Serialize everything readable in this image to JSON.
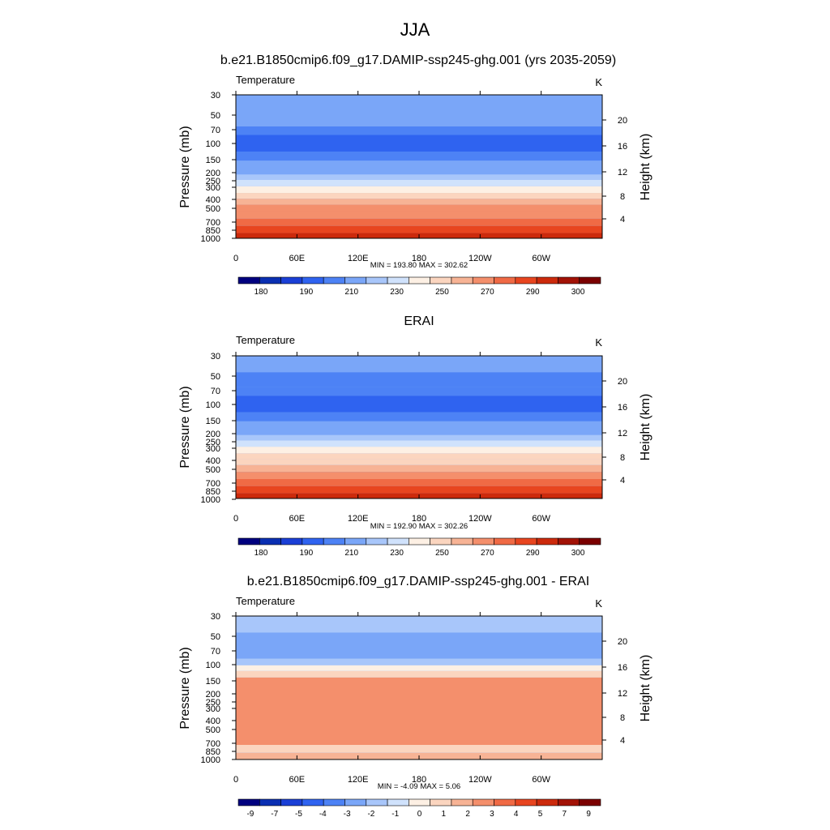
{
  "page": {
    "season": "JJA"
  },
  "chart_data": [
    {
      "type": "heatmap",
      "title": "b.e21.B1850cmip6.f09_g17.DAMIP-ssp245-ghg.001 (yrs 2035-2059)",
      "variable": "Temperature",
      "units": "K",
      "ylabel": "Pressure (mb)",
      "y2label": "Height (km)",
      "xlabel": "",
      "x_ticks": [
        "0",
        "60E",
        "120E",
        "180",
        "120W",
        "60W"
      ],
      "y_ticks": [
        "30",
        "50",
        "70",
        "100",
        "150",
        "200",
        "250",
        "300",
        "400",
        "500",
        "700",
        "850",
        "1000"
      ],
      "y2_ticks": [
        "20",
        "16",
        "12",
        "8",
        "4"
      ],
      "y_scale": "log",
      "stats": "MIN = 193.80  MAX = 302.62",
      "colorbar_labels": [
        "180",
        "190",
        "210",
        "230",
        "250",
        "270",
        "290",
        "300"
      ],
      "colorbar_colors": [
        "#00007f",
        "#0a2fb2",
        "#1a3fd6",
        "#2f63f0",
        "#4d82f5",
        "#7aa6f8",
        "#a8c6fa",
        "#d0e2fc",
        "#fdf0e4",
        "#fbd5bf",
        "#f7b395",
        "#f48f6c",
        "#f06a45",
        "#e8451f",
        "#cc2a0c",
        "#a21206",
        "#7b0000"
      ],
      "data_description_bands": [
        {
          "p_top": 30,
          "p_bottom": 45,
          "value": 215
        },
        {
          "p_top": 45,
          "p_bottom": 65,
          "value": 212
        },
        {
          "p_top": 65,
          "p_bottom": 80,
          "value": 208
        },
        {
          "p_top": 80,
          "p_bottom": 120,
          "value": 201
        },
        {
          "p_top": 120,
          "p_bottom": 150,
          "value": 207
        },
        {
          "p_top": 150,
          "p_bottom": 180,
          "value": 213
        },
        {
          "p_top": 180,
          "p_bottom": 210,
          "value": 218
        },
        {
          "p_top": 210,
          "p_bottom": 240,
          "value": 223
        },
        {
          "p_top": 240,
          "p_bottom": 280,
          "value": 230
        },
        {
          "p_top": 280,
          "p_bottom": 330,
          "value": 238
        },
        {
          "p_top": 330,
          "p_bottom": 380,
          "value": 246
        },
        {
          "p_top": 380,
          "p_bottom": 440,
          "value": 253
        },
        {
          "p_top": 440,
          "p_bottom": 520,
          "value": 260
        },
        {
          "p_top": 520,
          "p_bottom": 620,
          "value": 267
        },
        {
          "p_top": 620,
          "p_bottom": 740,
          "value": 274
        },
        {
          "p_top": 740,
          "p_bottom": 880,
          "value": 281
        },
        {
          "p_top": 880,
          "p_bottom": 1000,
          "value": 288
        }
      ]
    },
    {
      "type": "heatmap",
      "title": "ERAI",
      "variable": "Temperature",
      "units": "K",
      "ylabel": "Pressure (mb)",
      "y2label": "Height (km)",
      "xlabel": "",
      "x_ticks": [
        "0",
        "60E",
        "120E",
        "180",
        "120W",
        "60W"
      ],
      "y_ticks": [
        "30",
        "50",
        "70",
        "100",
        "150",
        "200",
        "250",
        "300",
        "400",
        "500",
        "700",
        "850",
        "1000"
      ],
      "y2_ticks": [
        "20",
        "16",
        "12",
        "8",
        "4"
      ],
      "y_scale": "log",
      "stats": "MIN = 192.90  MAX = 302.26",
      "colorbar_labels": [
        "180",
        "190",
        "210",
        "230",
        "250",
        "270",
        "290",
        "300"
      ],
      "colorbar_colors": [
        "#00007f",
        "#0a2fb2",
        "#1a3fd6",
        "#2f63f0",
        "#4d82f5",
        "#7aa6f8",
        "#a8c6fa",
        "#d0e2fc",
        "#fdf0e4",
        "#fbd5bf",
        "#f7b395",
        "#f48f6c",
        "#f06a45",
        "#e8451f",
        "#cc2a0c",
        "#a21206",
        "#7b0000"
      ],
      "data_description_bands": [
        {
          "p_top": 30,
          "p_bottom": 45,
          "value": 214
        },
        {
          "p_top": 45,
          "p_bottom": 65,
          "value": 211
        },
        {
          "p_top": 65,
          "p_bottom": 80,
          "value": 207
        },
        {
          "p_top": 80,
          "p_bottom": 120,
          "value": 200
        },
        {
          "p_top": 120,
          "p_bottom": 150,
          "value": 206
        },
        {
          "p_top": 150,
          "p_bottom": 180,
          "value": 212
        },
        {
          "p_top": 180,
          "p_bottom": 210,
          "value": 217
        },
        {
          "p_top": 210,
          "p_bottom": 240,
          "value": 222
        },
        {
          "p_top": 240,
          "p_bottom": 280,
          "value": 228
        },
        {
          "p_top": 280,
          "p_bottom": 330,
          "value": 236
        },
        {
          "p_top": 330,
          "p_bottom": 380,
          "value": 244
        },
        {
          "p_top": 380,
          "p_bottom": 440,
          "value": 251
        },
        {
          "p_top": 440,
          "p_bottom": 520,
          "value": 258
        },
        {
          "p_top": 520,
          "p_bottom": 620,
          "value": 265
        },
        {
          "p_top": 620,
          "p_bottom": 740,
          "value": 272
        },
        {
          "p_top": 740,
          "p_bottom": 880,
          "value": 279
        },
        {
          "p_top": 880,
          "p_bottom": 1000,
          "value": 286
        }
      ]
    },
    {
      "type": "heatmap",
      "title": "b.e21.B1850cmip6.f09_g17.DAMIP-ssp245-ghg.001 - ERAI",
      "variable": "Temperature",
      "units": "K",
      "ylabel": "Pressure (mb)",
      "y2label": "Height (km)",
      "xlabel": "",
      "x_ticks": [
        "0",
        "60E",
        "120E",
        "180",
        "120W",
        "60W"
      ],
      "y_ticks": [
        "30",
        "50",
        "70",
        "100",
        "150",
        "200",
        "250",
        "300",
        "400",
        "500",
        "700",
        "850",
        "1000"
      ],
      "y2_ticks": [
        "20",
        "16",
        "12",
        "8",
        "4"
      ],
      "y_scale": "log",
      "stats": "MIN =  -4.09  MAX =   5.06",
      "colorbar_labels": [
        "-9",
        "-7",
        "-5",
        "-4",
        "-3",
        "-2",
        "-1",
        "0",
        "1",
        "2",
        "3",
        "4",
        "5",
        "7",
        "9"
      ],
      "colorbar_colors": [
        "#00007f",
        "#0a2fb2",
        "#1a3fd6",
        "#2f63f0",
        "#4d82f5",
        "#7aa6f8",
        "#a8c6fa",
        "#d0e2fc",
        "#fdf0e4",
        "#fbd5bf",
        "#f7b395",
        "#f48f6c",
        "#f06a45",
        "#e8451f",
        "#cc2a0c",
        "#a21206",
        "#7b0000"
      ],
      "data_description_bands": [
        {
          "p_top": 30,
          "p_bottom": 45,
          "value": -2.5
        },
        {
          "p_top": 45,
          "p_bottom": 65,
          "value": -3.5
        },
        {
          "p_top": 65,
          "p_bottom": 85,
          "value": -4.0
        },
        {
          "p_top": 85,
          "p_bottom": 100,
          "value": -2.0
        },
        {
          "p_top": 100,
          "p_bottom": 115,
          "value": 0.5
        },
        {
          "p_top": 115,
          "p_bottom": 135,
          "value": 1.5
        },
        {
          "p_top": 135,
          "p_bottom": 700,
          "value": 3.5
        },
        {
          "p_top": 700,
          "p_bottom": 850,
          "value": 1.5
        },
        {
          "p_top": 850,
          "p_bottom": 1000,
          "value": 2.5
        }
      ]
    }
  ]
}
